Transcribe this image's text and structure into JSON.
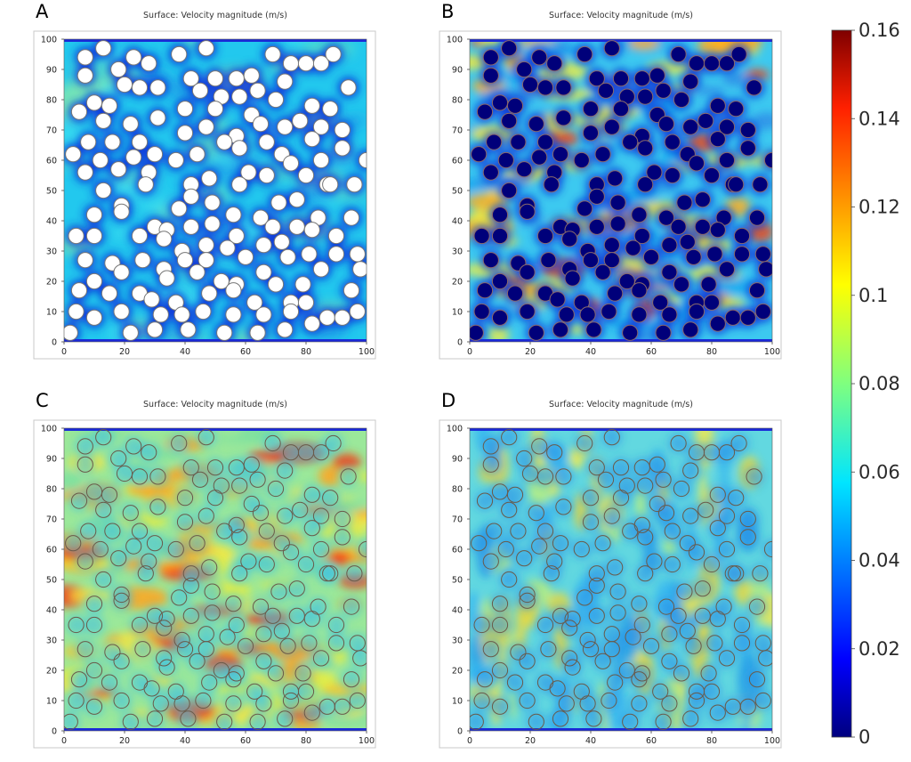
{
  "chart_data": {
    "type": "heatmap",
    "colorbar": {
      "min": 0,
      "max": 0.16,
      "ticks": [
        "0.16",
        "0.14",
        "0.12",
        "0.1",
        "0.08",
        "0.06",
        "0.04",
        "0.02",
        "0"
      ],
      "colormap": "rainbow"
    },
    "obstacles": [
      [
        7,
        94
      ],
      [
        13,
        97
      ],
      [
        23,
        94
      ],
      [
        7,
        88
      ],
      [
        18,
        90
      ],
      [
        28,
        92
      ],
      [
        38,
        95
      ],
      [
        47,
        97
      ],
      [
        69,
        95
      ],
      [
        75,
        92
      ],
      [
        80,
        92
      ],
      [
        85,
        92
      ],
      [
        89,
        95
      ],
      [
        42,
        87
      ],
      [
        50,
        87
      ],
      [
        57,
        87
      ],
      [
        62,
        88
      ],
      [
        20,
        85
      ],
      [
        25,
        84
      ],
      [
        31,
        84
      ],
      [
        45,
        83
      ],
      [
        52,
        81
      ],
      [
        58,
        81
      ],
      [
        64,
        83
      ],
      [
        73,
        86
      ],
      [
        94,
        84
      ],
      [
        10,
        79
      ],
      [
        15,
        78
      ],
      [
        40,
        77
      ],
      [
        50,
        77
      ],
      [
        62,
        75
      ],
      [
        70,
        80
      ],
      [
        82,
        78
      ],
      [
        78,
        73
      ],
      [
        88,
        77
      ],
      [
        5,
        76
      ],
      [
        13,
        73
      ],
      [
        22,
        72
      ],
      [
        31,
        74
      ],
      [
        40,
        69
      ],
      [
        47,
        71
      ],
      [
        57,
        68
      ],
      [
        65,
        72
      ],
      [
        73,
        71
      ],
      [
        85,
        71
      ],
      [
        92,
        70
      ],
      [
        8,
        66
      ],
      [
        16,
        66
      ],
      [
        25,
        66
      ],
      [
        30,
        62
      ],
      [
        37,
        60
      ],
      [
        53,
        66
      ],
      [
        67,
        66
      ],
      [
        82,
        67
      ],
      [
        3,
        62
      ],
      [
        12,
        60
      ],
      [
        23,
        61
      ],
      [
        44,
        62
      ],
      [
        58,
        64
      ],
      [
        72,
        62
      ],
      [
        92,
        64
      ],
      [
        7,
        56
      ],
      [
        18,
        57
      ],
      [
        28,
        56
      ],
      [
        61,
        56
      ],
      [
        75,
        59
      ],
      [
        85,
        60
      ],
      [
        100,
        60
      ],
      [
        13,
        50
      ],
      [
        19,
        45
      ],
      [
        27,
        52
      ],
      [
        42,
        52
      ],
      [
        48,
        54
      ],
      [
        58,
        52
      ],
      [
        67,
        55
      ],
      [
        80,
        55
      ],
      [
        87,
        52
      ],
      [
        96,
        52
      ],
      [
        42,
        48
      ],
      [
        49,
        46
      ],
      [
        71,
        46
      ],
      [
        77,
        47
      ],
      [
        88,
        52
      ],
      [
        10,
        42
      ],
      [
        19,
        43
      ],
      [
        38,
        44
      ],
      [
        56,
        42
      ],
      [
        65,
        41
      ],
      [
        84,
        41
      ],
      [
        95,
        41
      ],
      [
        30,
        38
      ],
      [
        34,
        37
      ],
      [
        42,
        38
      ],
      [
        49,
        39
      ],
      [
        57,
        35
      ],
      [
        69,
        38
      ],
      [
        77,
        38
      ],
      [
        82,
        37
      ],
      [
        90,
        35
      ],
      [
        4,
        35
      ],
      [
        10,
        35
      ],
      [
        25,
        35
      ],
      [
        33,
        34
      ],
      [
        39,
        30
      ],
      [
        47,
        32
      ],
      [
        54,
        31
      ],
      [
        66,
        32
      ],
      [
        72,
        33
      ],
      [
        90,
        29
      ],
      [
        7,
        27
      ],
      [
        16,
        26
      ],
      [
        26,
        27
      ],
      [
        33,
        24
      ],
      [
        40,
        27
      ],
      [
        47,
        27
      ],
      [
        60,
        28
      ],
      [
        74,
        28
      ],
      [
        81,
        29
      ],
      [
        85,
        24
      ],
      [
        97,
        29
      ],
      [
        10,
        20
      ],
      [
        19,
        23
      ],
      [
        25,
        16
      ],
      [
        34,
        21
      ],
      [
        44,
        23
      ],
      [
        52,
        20
      ],
      [
        57,
        19
      ],
      [
        66,
        23
      ],
      [
        70,
        19
      ],
      [
        79,
        19
      ],
      [
        98,
        24
      ],
      [
        5,
        17
      ],
      [
        15,
        16
      ],
      [
        29,
        14
      ],
      [
        37,
        13
      ],
      [
        48,
        16
      ],
      [
        56,
        17
      ],
      [
        63,
        13
      ],
      [
        75,
        13
      ],
      [
        80,
        13
      ],
      [
        95,
        17
      ],
      [
        4,
        10
      ],
      [
        10,
        8
      ],
      [
        19,
        10
      ],
      [
        32,
        9
      ],
      [
        39,
        9
      ],
      [
        46,
        10
      ],
      [
        56,
        9
      ],
      [
        66,
        9
      ],
      [
        75,
        10
      ],
      [
        87,
        8
      ],
      [
        92,
        8
      ],
      [
        97,
        10
      ],
      [
        2,
        3
      ],
      [
        22,
        3
      ],
      [
        30,
        4
      ],
      [
        41,
        4
      ],
      [
        53,
        3
      ],
      [
        64,
        3
      ],
      [
        73,
        4
      ],
      [
        82,
        6
      ]
    ],
    "panels": [
      {
        "label": "A",
        "title": "Surface: Velocity magnitude (m/s)",
        "xticks": [
          "0",
          "20",
          "40",
          "60",
          "80",
          "100"
        ],
        "yticks": [
          "0",
          "10",
          "20",
          "30",
          "40",
          "50",
          "60",
          "70",
          "80",
          "90",
          "100"
        ],
        "xlim": [
          0,
          100
        ],
        "ylim": [
          0,
          100
        ],
        "obstacle_fill": "#ffffff",
        "obstacle_stroke": "#777777"
      },
      {
        "label": "B",
        "title": "Surface: Velocity magnitude (m/s)",
        "xticks": [
          "0",
          "20",
          "40",
          "60",
          "80",
          "100"
        ],
        "yticks": [
          "0",
          "10",
          "20",
          "30",
          "40",
          "50",
          "60",
          "70",
          "80",
          "90",
          "100"
        ],
        "xlim": [
          0,
          100
        ],
        "ylim": [
          0,
          100
        ],
        "obstacle_fill": "#00007a",
        "obstacle_stroke": "#8a6a6a"
      },
      {
        "label": "C",
        "title": "Surface: Velocity magnitude (m/s)",
        "xticks": [
          "0",
          "20",
          "40",
          "60",
          "80",
          "100"
        ],
        "yticks": [
          "0",
          "10",
          "20",
          "30",
          "40",
          "50",
          "60",
          "70",
          "80",
          "90",
          "100"
        ],
        "xlim": [
          0,
          100
        ],
        "ylim": [
          0,
          100
        ],
        "obstacle_fill": "none",
        "obstacle_stroke": "#6a5a4a"
      },
      {
        "label": "D",
        "title": "Surface: Velocity magnitude (m/s)",
        "xticks": [
          "0",
          "20",
          "40",
          "60",
          "80",
          "100"
        ],
        "yticks": [
          "0",
          "10",
          "20",
          "30",
          "40",
          "50",
          "60",
          "70",
          "80",
          "90",
          "100"
        ],
        "xlim": [
          0,
          100
        ],
        "ylim": [
          0,
          100
        ],
        "obstacle_fill": "none",
        "obstacle_stroke": "#6a5a4a"
      }
    ]
  }
}
